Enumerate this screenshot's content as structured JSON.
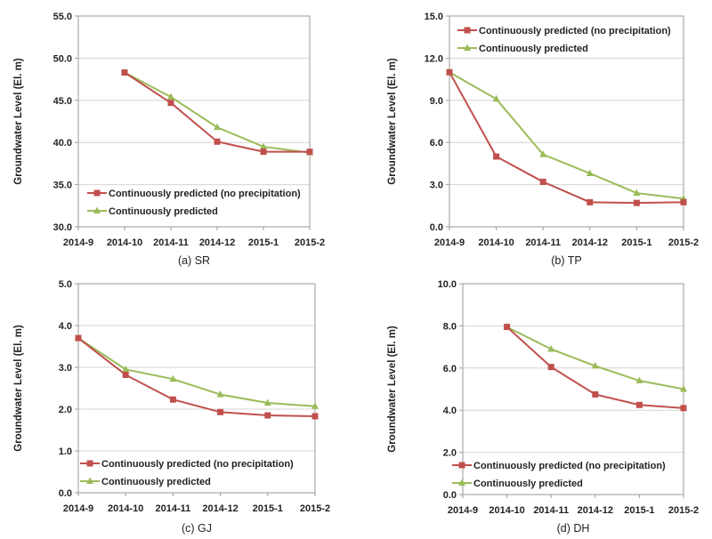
{
  "colors": {
    "no_precip": "#c0504d",
    "predicted": "#9bbb59",
    "grid": "#d4d4d4",
    "axis": "#9a9a9a"
  },
  "chart_data": [
    {
      "type": "line",
      "caption": "(a) SR",
      "ylabel": "Groundwater Level (El. m)",
      "categories": [
        "2014-9",
        "2014-10",
        "2014-11",
        "2014-12",
        "2015-1",
        "2015-2"
      ],
      "ylim": [
        30,
        55
      ],
      "ytick_step": 5,
      "ytick_labels": [
        "30.0",
        "35.0",
        "40.0",
        "45.0",
        "50.0",
        "55.0"
      ],
      "grid": true,
      "legend": "bottom-left",
      "series": [
        {
          "name": "Continuously predicted (no precipitation)",
          "marker": "square",
          "values": [
            null,
            48.3,
            44.7,
            40.1,
            38.9,
            38.9
          ]
        },
        {
          "name": "Continuously predicted",
          "marker": "triangle",
          "values": [
            null,
            48.3,
            45.4,
            41.8,
            39.5,
            38.8
          ]
        }
      ]
    },
    {
      "type": "line",
      "caption": "(b) TP",
      "ylabel": "Groundwater Level (El. m)",
      "categories": [
        "2014-9",
        "2014-10",
        "2014-11",
        "2014-12",
        "2015-1",
        "2015-2"
      ],
      "ylim": [
        0,
        15
      ],
      "ytick_step": 3,
      "ytick_labels": [
        "0.0",
        "3.0",
        "6.0",
        "9.0",
        "12.0",
        "15.0"
      ],
      "grid": true,
      "legend": "top-right",
      "series": [
        {
          "name": "Continuously predicted (no precipitation)",
          "marker": "square",
          "values": [
            11.0,
            5.0,
            3.2,
            1.75,
            1.7,
            1.75
          ]
        },
        {
          "name": "Continuously predicted",
          "marker": "triangle",
          "values": [
            11.0,
            9.1,
            5.15,
            3.8,
            2.4,
            2.0
          ]
        }
      ]
    },
    {
      "type": "line",
      "caption": "(c) GJ",
      "ylabel": "Groundwater Level (El. m)",
      "categories": [
        "2014-9",
        "2014-10",
        "2014-11",
        "2014-12",
        "2015-1",
        "2015-2"
      ],
      "ylim": [
        0,
        5
      ],
      "ytick_step": 1,
      "ytick_labels": [
        "0.0",
        "1.0",
        "2.0",
        "3.0",
        "4.0",
        "5.0"
      ],
      "grid": true,
      "legend": "bottom-left",
      "series": [
        {
          "name": "Continuously predicted (no precipitation)",
          "marker": "square",
          "values": [
            3.7,
            2.82,
            2.23,
            1.93,
            1.85,
            1.83
          ]
        },
        {
          "name": "Continuously predicted",
          "marker": "triangle",
          "values": [
            3.7,
            2.95,
            2.72,
            2.35,
            2.15,
            2.07
          ]
        }
      ]
    },
    {
      "type": "line",
      "caption": "(d) DH",
      "ylabel": "Groundwater Level (El. m)",
      "categories": [
        "2014-9",
        "2014-10",
        "2014-11",
        "2014-12",
        "2015-1",
        "2015-2"
      ],
      "ylim": [
        0,
        10
      ],
      "ytick_step": 2,
      "ytick_labels": [
        "0.0",
        "2.0",
        "4.0",
        "6.0",
        "8.0",
        "10.0"
      ],
      "grid": true,
      "legend": "bottom-left",
      "series": [
        {
          "name": "Continuously predicted (no precipitation)",
          "marker": "square",
          "values": [
            null,
            7.95,
            6.05,
            4.75,
            4.25,
            4.1
          ]
        },
        {
          "name": "Continuously predicted",
          "marker": "triangle",
          "values": [
            null,
            7.95,
            6.9,
            6.1,
            5.4,
            5.0
          ]
        }
      ]
    }
  ]
}
